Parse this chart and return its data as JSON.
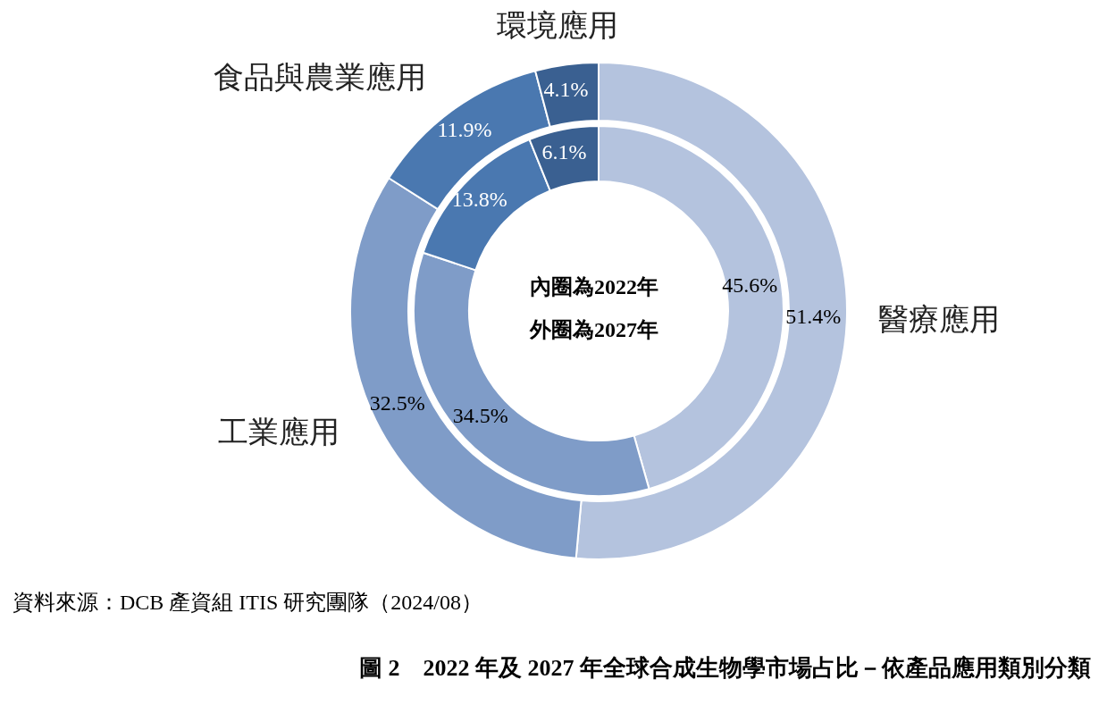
{
  "chart_data": {
    "type": "donut",
    "title": "圖 2　2022 年及 2027 年全球合成生物學市場占比－依產品應用類別分類",
    "categories": [
      "醫療應用",
      "工業應用",
      "食品與農業應用",
      "環境應用"
    ],
    "colors": [
      "#b4c3de",
      "#7f9cc8",
      "#4a78b0",
      "#3a6091"
    ],
    "series": [
      {
        "values": [
          45.6,
          34.5,
          13.8,
          6.1
        ],
        "value_labels": [
          "45.6%",
          "34.5%",
          "13.8%",
          "6.1%"
        ]
      },
      {
        "values": [
          51.4,
          32.5,
          11.9,
          4.1
        ],
        "value_labels": [
          "51.4%",
          "32.5%",
          "11.9%",
          "4.1%"
        ]
      }
    ],
    "legend": false,
    "annotations": [
      "內圈為2022年",
      "外圈為2027年",
      "資料來源：DCB 產資組 ITIS 研究團隊（2024/08）"
    ]
  }
}
